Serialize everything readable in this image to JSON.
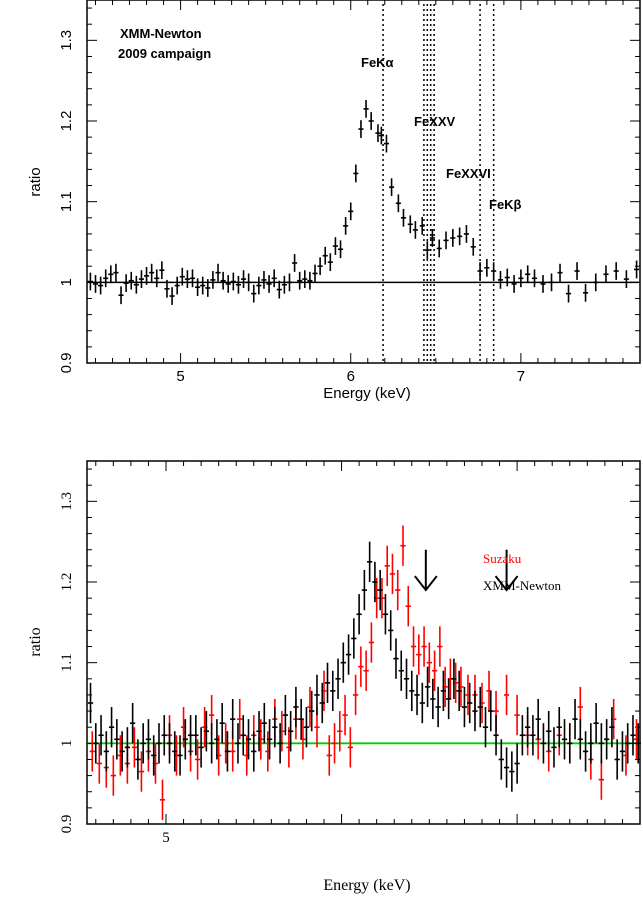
{
  "chart_data": [
    {
      "type": "scatter",
      "xlabel": "Energy (keV)",
      "ylabel": "ratio",
      "xlim": [
        4.45,
        7.7
      ],
      "ylim": [
        0.9,
        1.35
      ],
      "x_ticks": [
        5,
        6,
        7
      ],
      "y_ticks": [
        0.9,
        1,
        1.1,
        1.2,
        1.3
      ],
      "annotation": [
        "XMM-Newton",
        "2009 campaign"
      ],
      "reference_line": 1,
      "line_labels": [
        {
          "text": "FeKα",
          "energy": 6.4
        },
        {
          "text": "FeXXV",
          "energy": 6.5
        },
        {
          "text": "FeXXVI",
          "energy": 6.7
        },
        {
          "text": "FeKβ",
          "energy": 6.88
        }
      ],
      "vlines": [
        6.19,
        6.43,
        6.45,
        6.47,
        6.49,
        6.76,
        6.84
      ],
      "series": [
        {
          "color": "#000000",
          "x": [
            4.47,
            4.5,
            4.53,
            4.56,
            4.59,
            4.62,
            4.65,
            4.68,
            4.71,
            4.74,
            4.77,
            4.8,
            4.83,
            4.86,
            4.89,
            4.92,
            4.95,
            4.98,
            5.01,
            5.04,
            5.07,
            5.1,
            5.13,
            5.16,
            5.19,
            5.22,
            5.25,
            5.28,
            5.31,
            5.34,
            5.37,
            5.4,
            5.43,
            5.46,
            5.49,
            5.52,
            5.55,
            5.58,
            5.61,
            5.64,
            5.67,
            5.7,
            5.73,
            5.76,
            5.79,
            5.82,
            5.85,
            5.88,
            5.91,
            5.94,
            5.97,
            6.0,
            6.03,
            6.06,
            6.09,
            6.12,
            6.16,
            6.18,
            6.21,
            6.24,
            6.28,
            6.31,
            6.35,
            6.38,
            6.42,
            6.45,
            6.48,
            6.52,
            6.56,
            6.6,
            6.64,
            6.68,
            6.72,
            6.76,
            6.8,
            6.84,
            6.88,
            6.92,
            6.96,
            7.0,
            7.04,
            7.08,
            7.13,
            7.18,
            7.23,
            7.28,
            7.33,
            7.38,
            7.44,
            7.5,
            7.56,
            7.62,
            7.68
          ],
          "y": [
            1.001,
            0.998,
            0.996,
            1.005,
            1.01,
            1.012,
            0.984,
            0.999,
            1.002,
            0.997,
            1.004,
            1.008,
            1.012,
            1.005,
            1.015,
            0.992,
            0.983,
            0.996,
            1.007,
            1.004,
            1.005,
            0.994,
            0.996,
            0.993,
            1.003,
            1.012,
            1.002,
            0.998,
            1.001,
            0.997,
            1.004,
            1.0,
            0.986,
            0.996,
            1.003,
            0.998,
            1.005,
            0.991,
            0.997,
            1.0,
            1.024,
            1.002,
            1.004,
            1.002,
            1.011,
            1.02,
            1.033,
            1.025,
            1.045,
            1.041,
            1.07,
            1.088,
            1.135,
            1.19,
            1.215,
            1.2,
            1.185,
            1.182,
            1.172,
            1.118,
            1.098,
            1.08,
            1.072,
            1.065,
            1.07,
            1.04,
            1.055,
            1.042,
            1.052,
            1.055,
            1.057,
            1.06,
            1.044,
            1.014,
            1.018,
            1.014,
            1.003,
            1.006,
            0.998,
            1.005,
            1.01,
            1.005,
            0.998,
            1.0,
            1.012,
            0.986,
            1.014,
            0.987,
            1.0,
            1.01,
            1.014,
            1.004,
            1.016
          ]
        }
      ]
    },
    {
      "type": "scatter",
      "xlabel": "Energy (keV)",
      "ylabel": "ratio",
      "xlim": [
        4.55,
        7.7
      ],
      "ylim": [
        0.9,
        1.35
      ],
      "x_ticks": [
        5
      ],
      "y_ticks": [
        0.9,
        1,
        1.1,
        1.2,
        1.3
      ],
      "reference_line": 1,
      "arrows_at": [
        6.48,
        6.94
      ],
      "series": [
        {
          "name": "Suzaku",
          "color": "#ff0000",
          "x": [
            4.58,
            4.62,
            4.66,
            4.7,
            4.74,
            4.78,
            4.82,
            4.86,
            4.9,
            4.94,
            4.98,
            5.02,
            5.06,
            5.1,
            5.14,
            5.18,
            5.22,
            5.26,
            5.3,
            5.34,
            5.38,
            5.42,
            5.46,
            5.5,
            5.54,
            5.58,
            5.62,
            5.66,
            5.7,
            5.74,
            5.78,
            5.82,
            5.86,
            5.9,
            5.93,
            5.96,
            5.99,
            6.02,
            6.05,
            6.08,
            6.11,
            6.14,
            6.17,
            6.2,
            6.23,
            6.26,
            6.29,
            6.32,
            6.35,
            6.38,
            6.41,
            6.44,
            6.47,
            6.5,
            6.53,
            6.56,
            6.59,
            6.62,
            6.65,
            6.68,
            6.72,
            6.76,
            6.8,
            6.84,
            6.88,
            6.94,
            7.0,
            7.06,
            7.12,
            7.18,
            7.24,
            7.3,
            7.36,
            7.42,
            7.48,
            7.55,
            7.62,
            7.68
          ],
          "y": [
            0.99,
            0.975,
            0.97,
            0.96,
            0.985,
            0.975,
            0.995,
            0.965,
            0.99,
            0.975,
            0.93,
            1.01,
            0.985,
            1.02,
            0.99,
            0.98,
            1.02,
            1.035,
            0.985,
            1.0,
            0.99,
            1.03,
            0.985,
            1.01,
            1.005,
            0.99,
            1.03,
            1.015,
            0.995,
            1.03,
            1.005,
            1.045,
            1.02,
            1.065,
            0.985,
            1.0,
            1.015,
            1.035,
            0.995,
            1.06,
            1.095,
            1.09,
            1.125,
            1.18,
            1.18,
            1.22,
            1.21,
            1.19,
            1.245,
            1.17,
            1.12,
            1.11,
            1.12,
            1.1,
            1.09,
            1.12,
            1.07,
            1.08,
            1.075,
            1.07,
            1.06,
            1.06,
            1.05,
            1.065,
            1.04,
            1.06,
            1.035,
            1.01,
            1.005,
            0.99,
            1.01,
            1.0,
            1.045,
            0.98,
            0.955,
            1.03,
            0.985,
            1.005
          ]
        },
        {
          "name": "XMM-Newton",
          "color": "#000000",
          "x": [
            4.57,
            4.6,
            4.63,
            4.66,
            4.69,
            4.72,
            4.75,
            4.78,
            4.81,
            4.84,
            4.87,
            4.9,
            4.93,
            4.96,
            4.99,
            5.02,
            5.05,
            5.08,
            5.11,
            5.14,
            5.17,
            5.2,
            5.23,
            5.26,
            5.29,
            5.32,
            5.35,
            5.38,
            5.41,
            5.44,
            5.47,
            5.5,
            5.53,
            5.56,
            5.59,
            5.62,
            5.65,
            5.68,
            5.71,
            5.74,
            5.77,
            5.8,
            5.83,
            5.86,
            5.89,
            5.92,
            5.95,
            5.98,
            6.01,
            6.04,
            6.07,
            6.1,
            6.13,
            6.16,
            6.19,
            6.22,
            6.25,
            6.28,
            6.31,
            6.34,
            6.37,
            6.4,
            6.43,
            6.46,
            6.49,
            6.52,
            6.55,
            6.58,
            6.61,
            6.64,
            6.67,
            6.7,
            6.73,
            6.76,
            6.79,
            6.82,
            6.85,
            6.88,
            6.91,
            6.94,
            6.97,
            7.0,
            7.03,
            7.06,
            7.09,
            7.12,
            7.15,
            7.18,
            7.21,
            7.24,
            7.27,
            7.3,
            7.33,
            7.36,
            7.39,
            7.42,
            7.45,
            7.48,
            7.51,
            7.54,
            7.57,
            7.6,
            7.63,
            7.66,
            7.69
          ],
          "y": [
            1.05,
            1.0,
            1.01,
            0.99,
            1.02,
            1.005,
            0.99,
            0.995,
            1.025,
            0.98,
            1.0,
            1.005,
            0.985,
            1.0,
            1.01,
            1.0,
            0.99,
            0.985,
            1.005,
            1.01,
            1.01,
            0.995,
            1.015,
            1.0,
            1.005,
            1.025,
            0.99,
            1.03,
            1.0,
            1.01,
            1.005,
            0.99,
            1.015,
            1.025,
            1.005,
            1.02,
            1.0,
            1.035,
            1.015,
            1.045,
            1.03,
            1.02,
            1.04,
            1.06,
            1.05,
            1.075,
            1.065,
            1.08,
            1.1,
            1.11,
            1.13,
            1.16,
            1.19,
            1.225,
            1.2,
            1.19,
            1.16,
            1.14,
            1.105,
            1.09,
            1.08,
            1.065,
            1.06,
            1.05,
            1.07,
            1.055,
            1.045,
            1.065,
            1.055,
            1.08,
            1.065,
            1.045,
            1.05,
            1.04,
            1.045,
            1.02,
            1.04,
            1.01,
            0.98,
            0.97,
            0.965,
            0.975,
            1.01,
            1.02,
            1.01,
            1.03,
            1.0,
            1.015,
            0.995,
            1.02,
            1.005,
            1.0,
            1.03,
            1.005,
            0.99,
            1.0,
            1.025,
            1.0,
            1.005,
            1.02,
            0.98,
            0.99,
            1.0,
            1.01,
            1.0
          ]
        }
      ]
    }
  ]
}
